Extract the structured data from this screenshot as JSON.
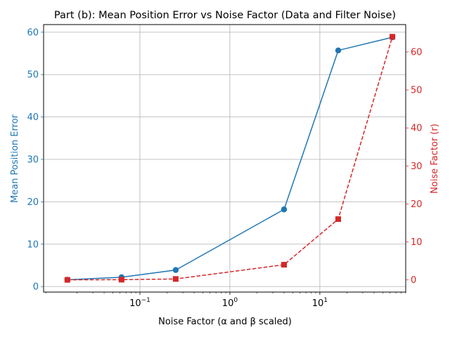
{
  "chart_data": {
    "type": "line",
    "title": "Part (b): Mean Position Error vs Noise Factor (Data and Filter Noise)",
    "xlabel": "Noise Factor (α and β scaled)",
    "ylabel_left": "Mean Position Error",
    "ylabel_right": "Noise Factor (r)",
    "x_scale": "log",
    "x_ticks": [
      {
        "value": 0.1,
        "base": "10",
        "exp": "−1"
      },
      {
        "value": 1,
        "base": "10",
        "exp": "0"
      },
      {
        "value": 10,
        "base": "10",
        "exp": "1"
      }
    ],
    "y_left_ticks": [
      0,
      10,
      20,
      30,
      40,
      50,
      60
    ],
    "y_right_ticks": [
      0,
      10,
      20,
      30,
      40,
      50,
      60
    ],
    "xlim": [
      0.0085,
      90
    ],
    "ylim_left": [
      -1.3,
      61.8
    ],
    "ylim_right": [
      -3.2,
      67.2
    ],
    "grid": true,
    "left_color": "#1f77b4",
    "right_color": "#d62728",
    "series": [
      {
        "axis": "left",
        "color": "#1f77b4",
        "marker": "circle",
        "linestyle": "solid",
        "x": [
          0.015625,
          0.0625,
          0.25,
          4,
          16,
          64
        ],
        "values": [
          1.6,
          2.2,
          3.9,
          18.2,
          55.7,
          58.8
        ]
      },
      {
        "axis": "right",
        "color": "#d62728",
        "marker": "square",
        "linestyle": "dashed",
        "x": [
          0.015625,
          0.0625,
          0.25,
          4,
          16,
          64
        ],
        "values": [
          0.0156,
          0.0625,
          0.25,
          4,
          16,
          64
        ]
      }
    ]
  }
}
